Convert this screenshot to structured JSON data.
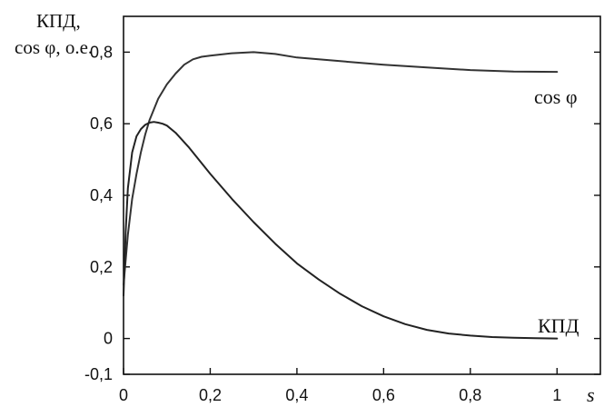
{
  "chart_data": {
    "type": "line",
    "ylabel": "КПД,",
    "ylabel_line2": "cos φ, о.е.",
    "xlabel": "s",
    "xlim": [
      0,
      1.1
    ],
    "ylim": [
      -0.1,
      0.9
    ],
    "xticks": [
      0,
      0.2,
      0.4,
      0.6,
      0.8,
      1
    ],
    "xtick_labels": [
      "0",
      "0,2",
      "0,4",
      "0,6",
      "0,8",
      "1"
    ],
    "yticks": [
      -0.1,
      0,
      0.2,
      0.4,
      0.6,
      0.8
    ],
    "ytick_labels": [
      "-0,1",
      "0",
      "0,2",
      "0,4",
      "0,6",
      "0,8"
    ],
    "grid": false,
    "series": [
      {
        "name": "cos φ",
        "color": "#333333",
        "x": [
          0,
          0.005,
          0.01,
          0.02,
          0.03,
          0.04,
          0.05,
          0.06,
          0.08,
          0.1,
          0.12,
          0.14,
          0.16,
          0.18,
          0.2,
          0.25,
          0.3,
          0.35,
          0.4,
          0.5,
          0.6,
          0.7,
          0.8,
          0.9,
          1.0
        ],
        "y": [
          0.15,
          0.22,
          0.29,
          0.39,
          0.46,
          0.52,
          0.57,
          0.61,
          0.67,
          0.71,
          0.74,
          0.765,
          0.78,
          0.787,
          0.79,
          0.797,
          0.8,
          0.795,
          0.785,
          0.775,
          0.765,
          0.757,
          0.75,
          0.746,
          0.745
        ]
      },
      {
        "name": "КПД",
        "color": "#222222",
        "x": [
          0,
          0.005,
          0.01,
          0.02,
          0.03,
          0.04,
          0.05,
          0.06,
          0.07,
          0.08,
          0.09,
          0.1,
          0.12,
          0.15,
          0.2,
          0.25,
          0.3,
          0.35,
          0.4,
          0.45,
          0.5,
          0.55,
          0.6,
          0.65,
          0.7,
          0.75,
          0.8,
          0.85,
          0.9,
          0.95,
          1.0
        ],
        "y": [
          0.12,
          0.3,
          0.42,
          0.52,
          0.565,
          0.585,
          0.597,
          0.603,
          0.605,
          0.603,
          0.6,
          0.595,
          0.575,
          0.535,
          0.46,
          0.39,
          0.325,
          0.265,
          0.21,
          0.165,
          0.125,
          0.09,
          0.062,
          0.04,
          0.024,
          0.014,
          0.008,
          0.004,
          0.002,
          0.001,
          0.0
        ]
      }
    ],
    "annotations": [
      {
        "text": "cos φ",
        "x": 1.08,
        "y": 0.745
      },
      {
        "text": "КПД",
        "x": 1.08,
        "y": 0.0
      }
    ]
  }
}
